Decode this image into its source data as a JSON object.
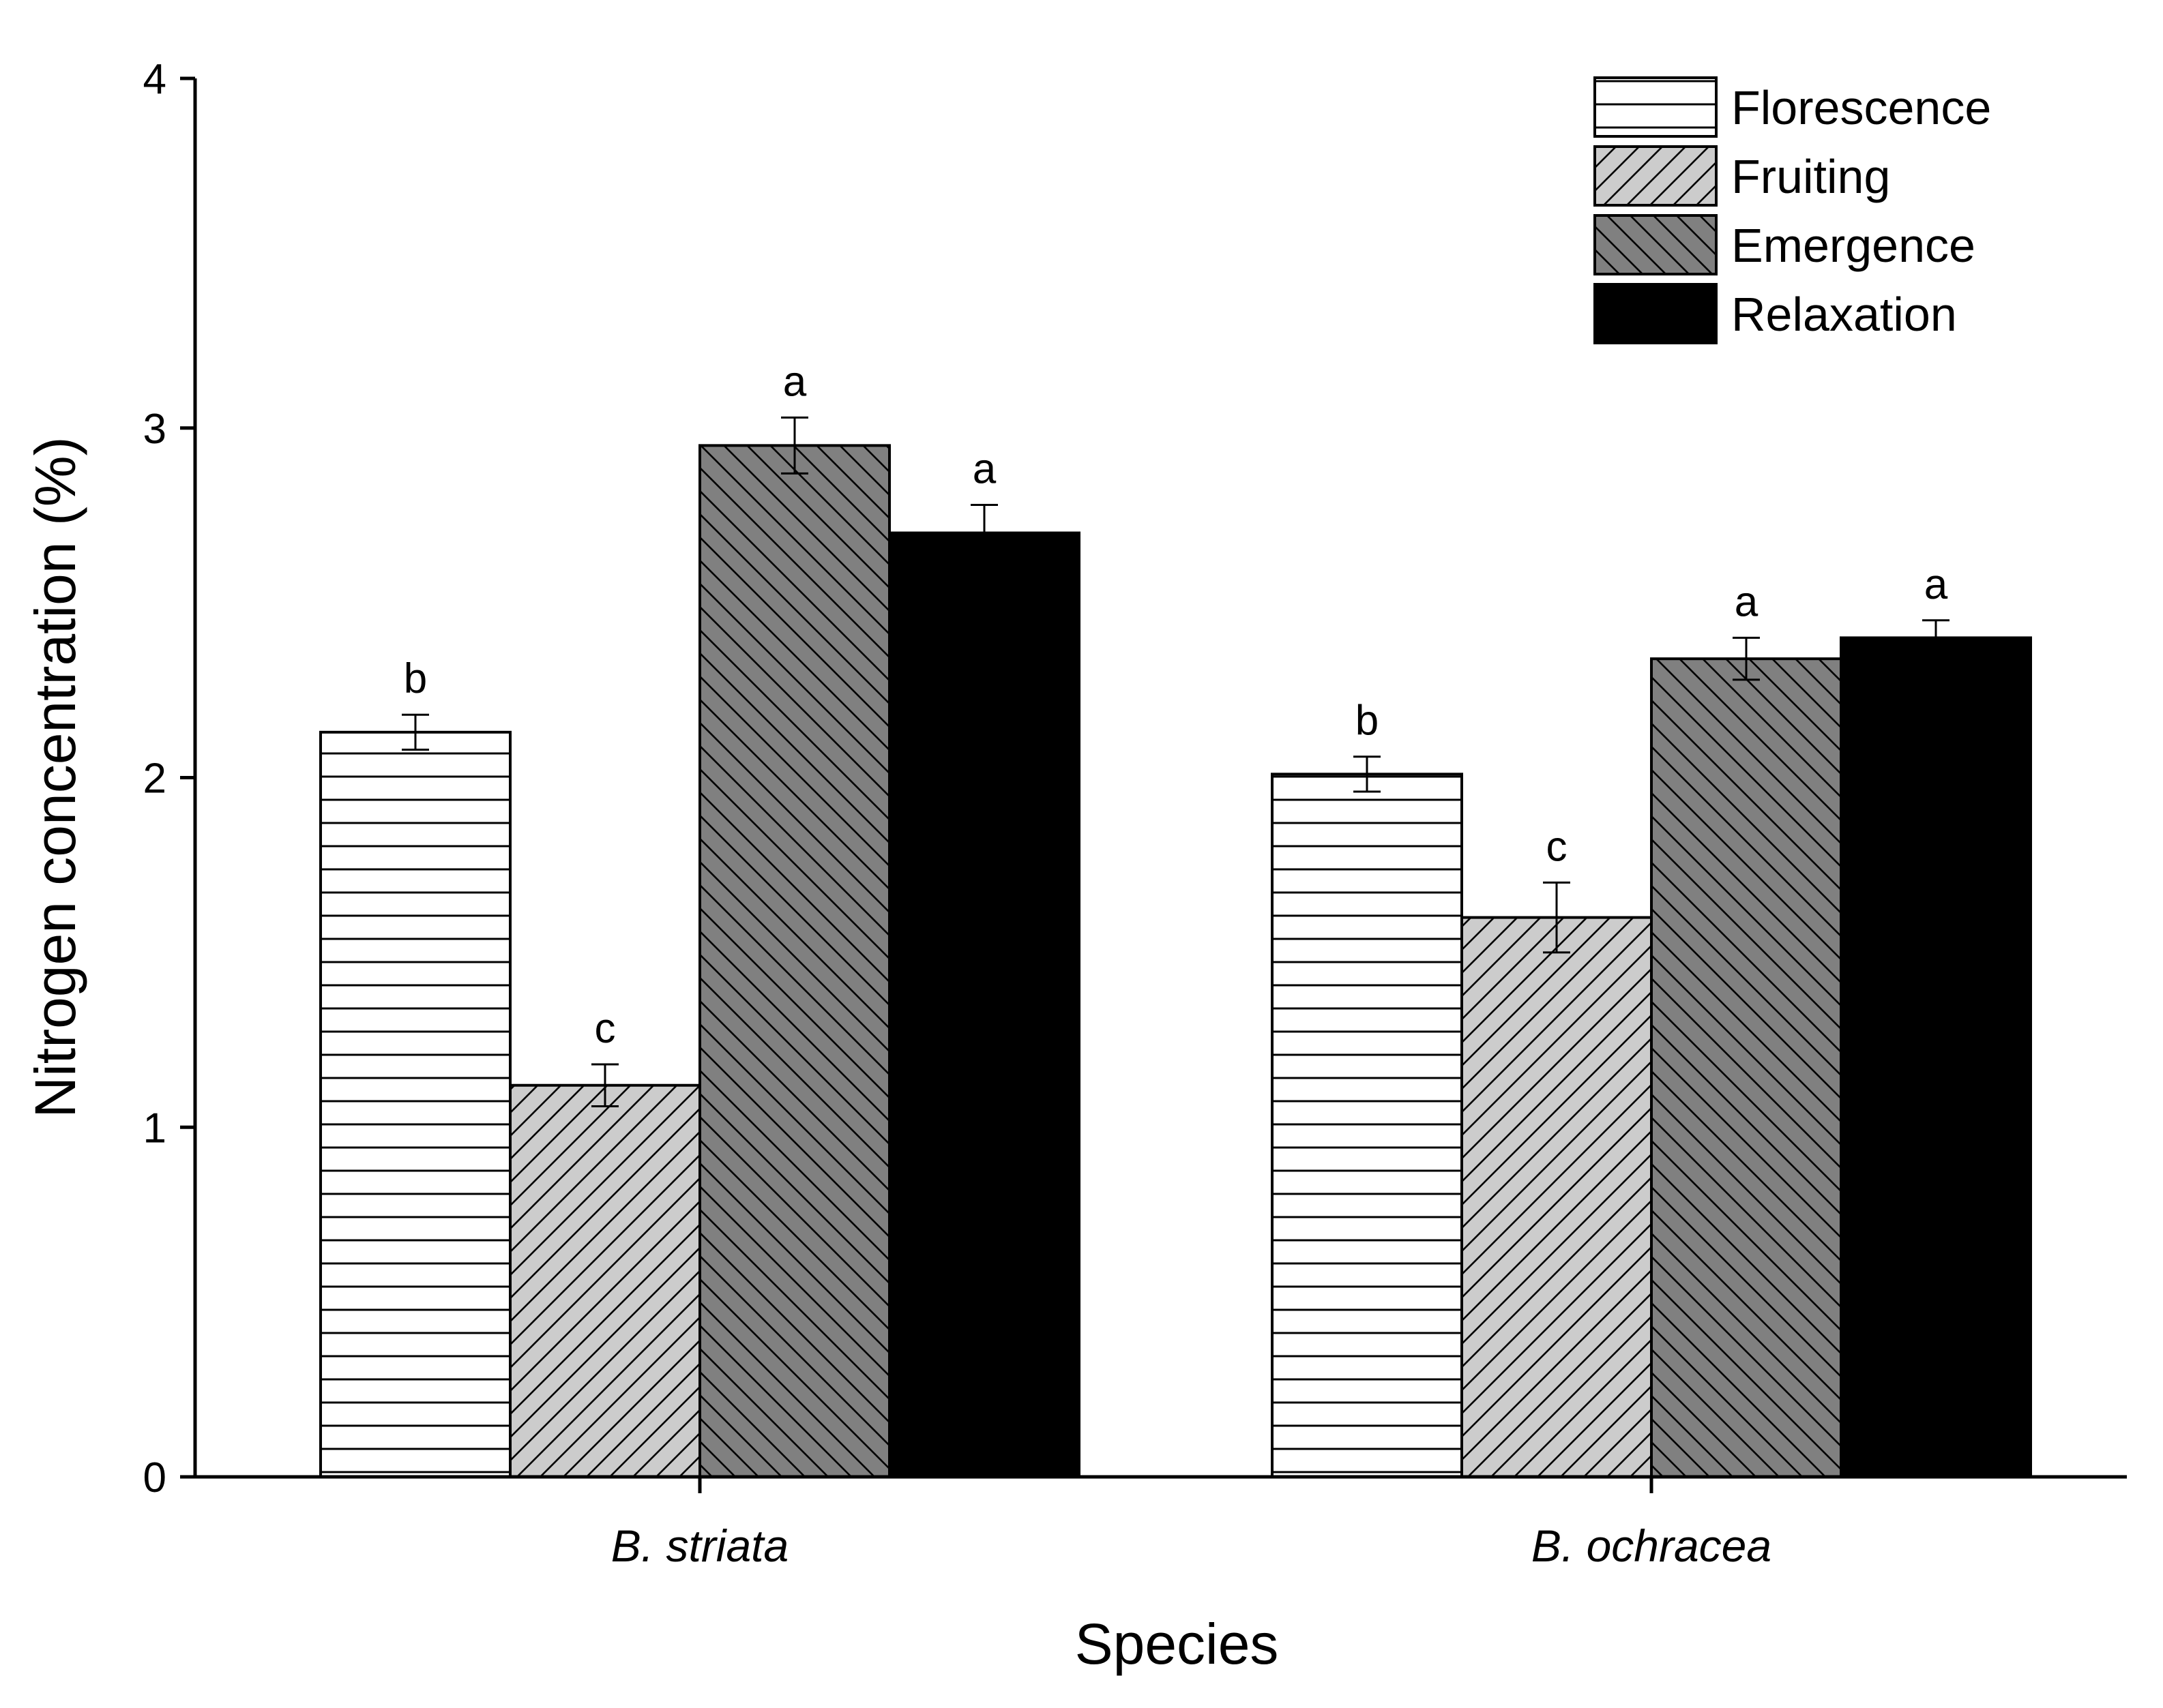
{
  "chart_data": {
    "type": "bar",
    "title": "",
    "xlabel": "Species",
    "ylabel": "Nitrogen concentration (%)",
    "ylim": [
      0,
      4
    ],
    "yticks": [
      "0",
      "1",
      "2",
      "3",
      "4"
    ],
    "categories": [
      "B. striata",
      "B. ochracea"
    ],
    "legend_position": "top-right",
    "series": [
      {
        "name": "Florescence",
        "values": [
          2.13,
          2.01
        ],
        "errors": [
          0.05,
          0.05
        ],
        "letters": [
          "b",
          "b"
        ],
        "pattern": "horizontal-lines",
        "fill": "#ffffff"
      },
      {
        "name": "Fruiting",
        "values": [
          1.12,
          1.6
        ],
        "errors": [
          0.06,
          0.1
        ],
        "letters": [
          "c",
          "c"
        ],
        "pattern": "forward-diagonal",
        "fill": "#cccccc"
      },
      {
        "name": "Emergence",
        "values": [
          2.95,
          2.34
        ],
        "errors": [
          0.08,
          0.06
        ],
        "letters": [
          "a",
          "a"
        ],
        "pattern": "back-diagonal",
        "fill": "#808080"
      },
      {
        "name": "Relaxation",
        "values": [
          2.7,
          2.4
        ],
        "errors": [
          0.08,
          0.05
        ],
        "letters": [
          "a",
          "a"
        ],
        "pattern": "solid",
        "fill": "#000000"
      }
    ]
  }
}
